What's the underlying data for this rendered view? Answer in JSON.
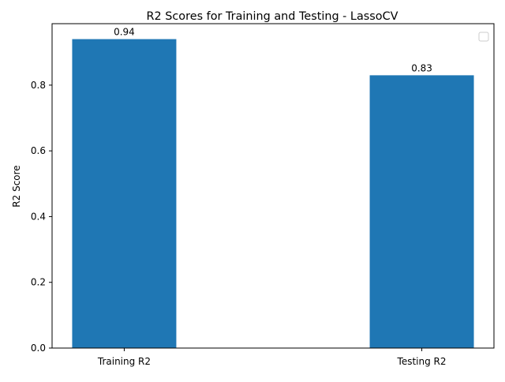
{
  "chart_data": {
    "type": "bar",
    "title": "R2 Scores for Training and Testing - LassoCV",
    "xlabel": "",
    "ylabel": "R2 Score",
    "categories": [
      "Training R2",
      "Testing R2"
    ],
    "values": [
      0.94,
      0.83
    ],
    "data_labels": [
      "0.94",
      "0.83"
    ],
    "ylim": [
      0,
      0.987
    ],
    "y_ticks": [
      0.0,
      0.2,
      0.4,
      0.6,
      0.8
    ],
    "y_tick_labels": [
      "0.0",
      "0.2",
      "0.4",
      "0.6",
      "0.8"
    ],
    "bar_color": "#1f77b4",
    "grid": false,
    "legend": {
      "placement": "top-right",
      "entries": []
    }
  }
}
